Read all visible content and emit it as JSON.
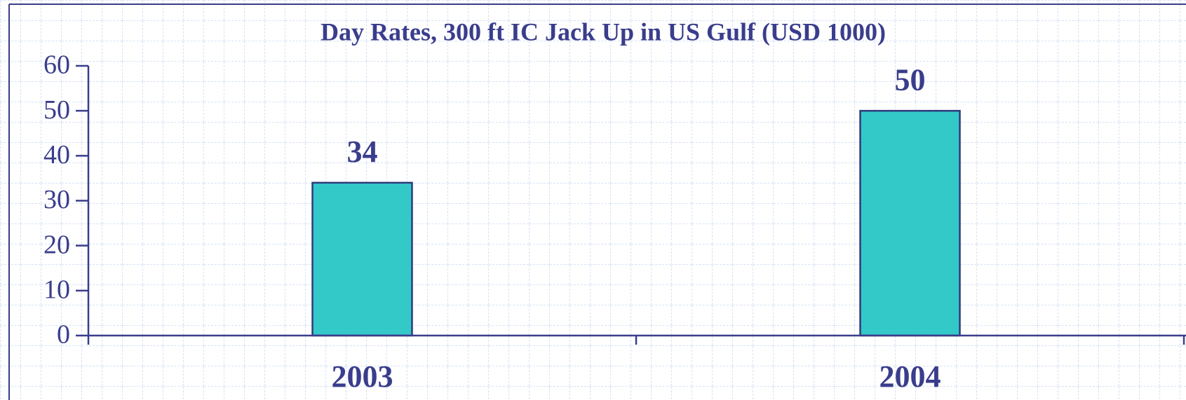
{
  "chart_data": {
    "type": "bar",
    "title": "Day Rates, 300 ft IC Jack Up in US Gulf (USD 1000)",
    "categories": [
      "2003",
      "2004"
    ],
    "values": [
      34,
      50
    ],
    "color": "#33c9c9",
    "ylim": [
      0,
      60
    ],
    "yticks": [
      0,
      10,
      20,
      30,
      40,
      50,
      60
    ],
    "grid": false
  }
}
